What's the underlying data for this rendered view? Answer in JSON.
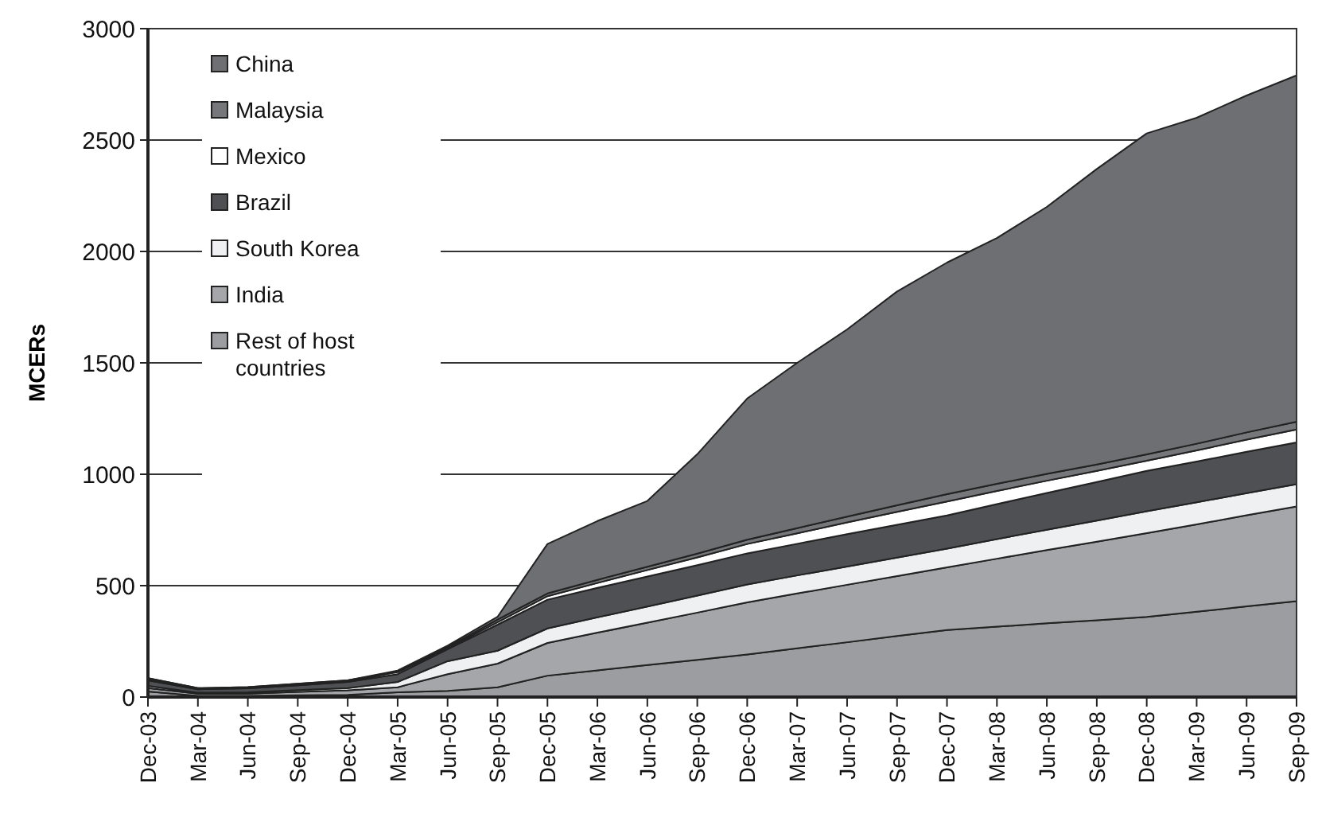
{
  "chart_data": {
    "type": "area",
    "stacked": true,
    "ylabel": "MCERs",
    "ylim": [
      0,
      3000
    ],
    "yticks": [
      0,
      500,
      1000,
      1500,
      2000,
      2500,
      3000
    ],
    "grid": "y",
    "legend": "top left",
    "categories": [
      "Dec-03",
      "Mar-04",
      "Jun-04",
      "Sep-04",
      "Dec-04",
      "Mar-05",
      "Jun-05",
      "Sep-05",
      "Dec-05",
      "Mar-06",
      "Jun-06",
      "Sep-06",
      "Dec-06",
      "Mar-07",
      "Jun-07",
      "Sep-07",
      "Dec-07",
      "Mar-08",
      "Jun-08",
      "Sep-08",
      "Dec-08",
      "Mar-09",
      "Jun-09",
      "Sep-09"
    ],
    "series": [
      {
        "name": "Rest of host countries",
        "color": "#9c9da1",
        "values": [
          25,
          5,
          5,
          8,
          10,
          21,
          28,
          44,
          96,
          120,
          144,
          167,
          191,
          219,
          246,
          274,
          301,
          316,
          331,
          345,
          360,
          383,
          407,
          430
        ]
      },
      {
        "name": "India",
        "color": "#a5a6aa",
        "values": [
          15,
          10,
          10,
          15,
          20,
          23,
          75,
          106,
          147,
          169,
          190,
          212,
          234,
          246,
          258,
          269,
          281,
          305,
          329,
          352,
          376,
          392,
          409,
          425
        ]
      },
      {
        "name": "South Korea",
        "color": "#eff0f2",
        "values": [
          10,
          5,
          6,
          8,
          10,
          24,
          58,
          58,
          65,
          69,
          72,
          76,
          80,
          81,
          82,
          83,
          84,
          88,
          91,
          95,
          98,
          99,
          99,
          100
        ]
      },
      {
        "name": "Brazil",
        "color": "#4f5053",
        "values": [
          25,
          15,
          18,
          22,
          28,
          35,
          54,
          117,
          129,
          132,
          135,
          137,
          140,
          142,
          145,
          147,
          149,
          157,
          165,
          173,
          181,
          183,
          186,
          188
        ]
      },
      {
        "name": "Mexico",
        "color": "#ffffff",
        "values": [
          5,
          3,
          3,
          4,
          4,
          9,
          5,
          11,
          16,
          22,
          29,
          35,
          42,
          47,
          53,
          58,
          63,
          59,
          55,
          50,
          46,
          50,
          54,
          58
        ]
      },
      {
        "name": "Malaysia",
        "color": "#76777b",
        "values": [
          5,
          2,
          3,
          3,
          3,
          2,
          4,
          12,
          12,
          14,
          15,
          17,
          19,
          23,
          26,
          30,
          33,
          32,
          31,
          29,
          28,
          30,
          33,
          35
        ]
      },
      {
        "name": "China",
        "color": "#6e6f73",
        "values": [
          0,
          0,
          0,
          0,
          0,
          5,
          7,
          12,
          222,
          264,
          295,
          446,
          634,
          742,
          840,
          959,
          1039,
          1103,
          1198,
          1326,
          1441,
          1463,
          1512,
          1554
        ]
      }
    ]
  }
}
